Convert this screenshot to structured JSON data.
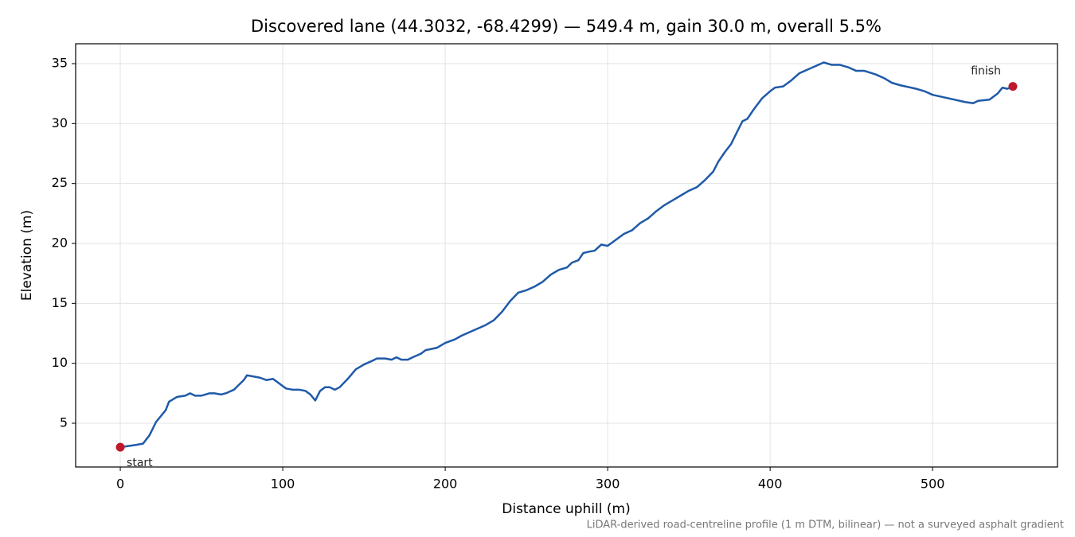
{
  "chart_data": {
    "type": "line",
    "title": "Discovered lane (44.3032, -68.4299) — 549.4 m, gain 30.0 m, overall 5.5%",
    "xlabel": "Distance uphill (m)",
    "ylabel": "Elevation (m)",
    "note": "LiDAR-derived road-centreline profile (1 m DTM, bilinear) — not a surveyed asphalt gradient",
    "x": [
      0,
      5,
      10,
      14,
      18,
      22,
      28,
      30,
      35,
      40,
      43,
      46,
      50,
      55,
      58,
      62,
      65,
      70,
      73,
      76,
      78,
      82,
      86,
      90,
      94,
      98,
      102,
      106,
      110,
      114,
      117,
      120,
      123,
      126,
      129,
      132,
      135,
      140,
      145,
      150,
      155,
      158,
      163,
      167,
      170,
      173,
      177,
      180,
      185,
      188,
      195,
      200,
      206,
      210,
      215,
      220,
      225,
      230,
      235,
      240,
      245,
      250,
      255,
      260,
      265,
      270,
      275,
      278,
      282,
      285,
      288,
      292,
      296,
      300,
      305,
      310,
      315,
      320,
      325,
      330,
      335,
      340,
      345,
      350,
      355,
      360,
      365,
      368,
      372,
      376,
      380,
      383,
      386,
      390,
      395,
      400,
      403,
      408,
      413,
      418,
      423,
      428,
      433,
      438,
      443,
      448,
      453,
      458,
      465,
      470,
      475,
      480,
      490,
      495,
      500,
      510,
      520,
      525,
      528,
      535,
      540,
      543,
      546,
      549.4
    ],
    "series": [
      {
        "name": "elevation",
        "color": "#1f5aa8",
        "values": [
          3.0,
          3.1,
          3.2,
          3.3,
          4.0,
          5.1,
          6.1,
          6.8,
          7.2,
          7.3,
          7.5,
          7.3,
          7.3,
          7.5,
          7.5,
          7.4,
          7.5,
          7.8,
          8.2,
          8.6,
          9.0,
          8.9,
          8.8,
          8.6,
          8.7,
          8.3,
          7.9,
          7.8,
          7.8,
          7.7,
          7.4,
          6.9,
          7.7,
          8.0,
          8.0,
          7.8,
          8.0,
          8.7,
          9.5,
          9.9,
          10.2,
          10.4,
          10.4,
          10.3,
          10.5,
          10.3,
          10.3,
          10.5,
          10.8,
          11.1,
          11.3,
          11.7,
          12.0,
          12.3,
          12.6,
          12.9,
          13.2,
          13.6,
          14.3,
          15.2,
          15.9,
          16.1,
          16.4,
          16.8,
          17.4,
          17.8,
          18.0,
          18.4,
          18.6,
          19.2,
          19.3,
          19.4,
          19.9,
          19.8,
          20.3,
          20.8,
          21.1,
          21.7,
          22.1,
          22.7,
          23.2,
          23.6,
          24.0,
          24.4,
          24.7,
          25.3,
          26.0,
          26.8,
          27.6,
          28.3,
          29.4,
          30.2,
          30.4,
          31.2,
          32.1,
          32.7,
          33.0,
          33.1,
          33.6,
          34.2,
          34.5,
          34.8,
          35.1,
          34.9,
          34.9,
          34.7,
          34.4,
          34.4,
          34.1,
          33.8,
          33.4,
          33.2,
          32.9,
          32.7,
          32.4,
          32.1,
          31.8,
          31.7,
          31.9,
          32.0,
          32.5,
          33.0,
          32.9,
          33.1
        ]
      }
    ],
    "points": [
      {
        "label": "start",
        "x": 0,
        "y": 3.0,
        "color": "#c0182a"
      },
      {
        "label": "finish",
        "x": 549.4,
        "y": 33.1,
        "color": "#c0182a"
      }
    ],
    "xlim": [
      -27.47,
      576.87
    ],
    "ylim": [
      1.35,
      36.66
    ],
    "xticks": [
      0,
      100,
      200,
      300,
      400,
      500
    ],
    "yticks": [
      5,
      10,
      15,
      20,
      25,
      30,
      35
    ],
    "grid": true
  }
}
